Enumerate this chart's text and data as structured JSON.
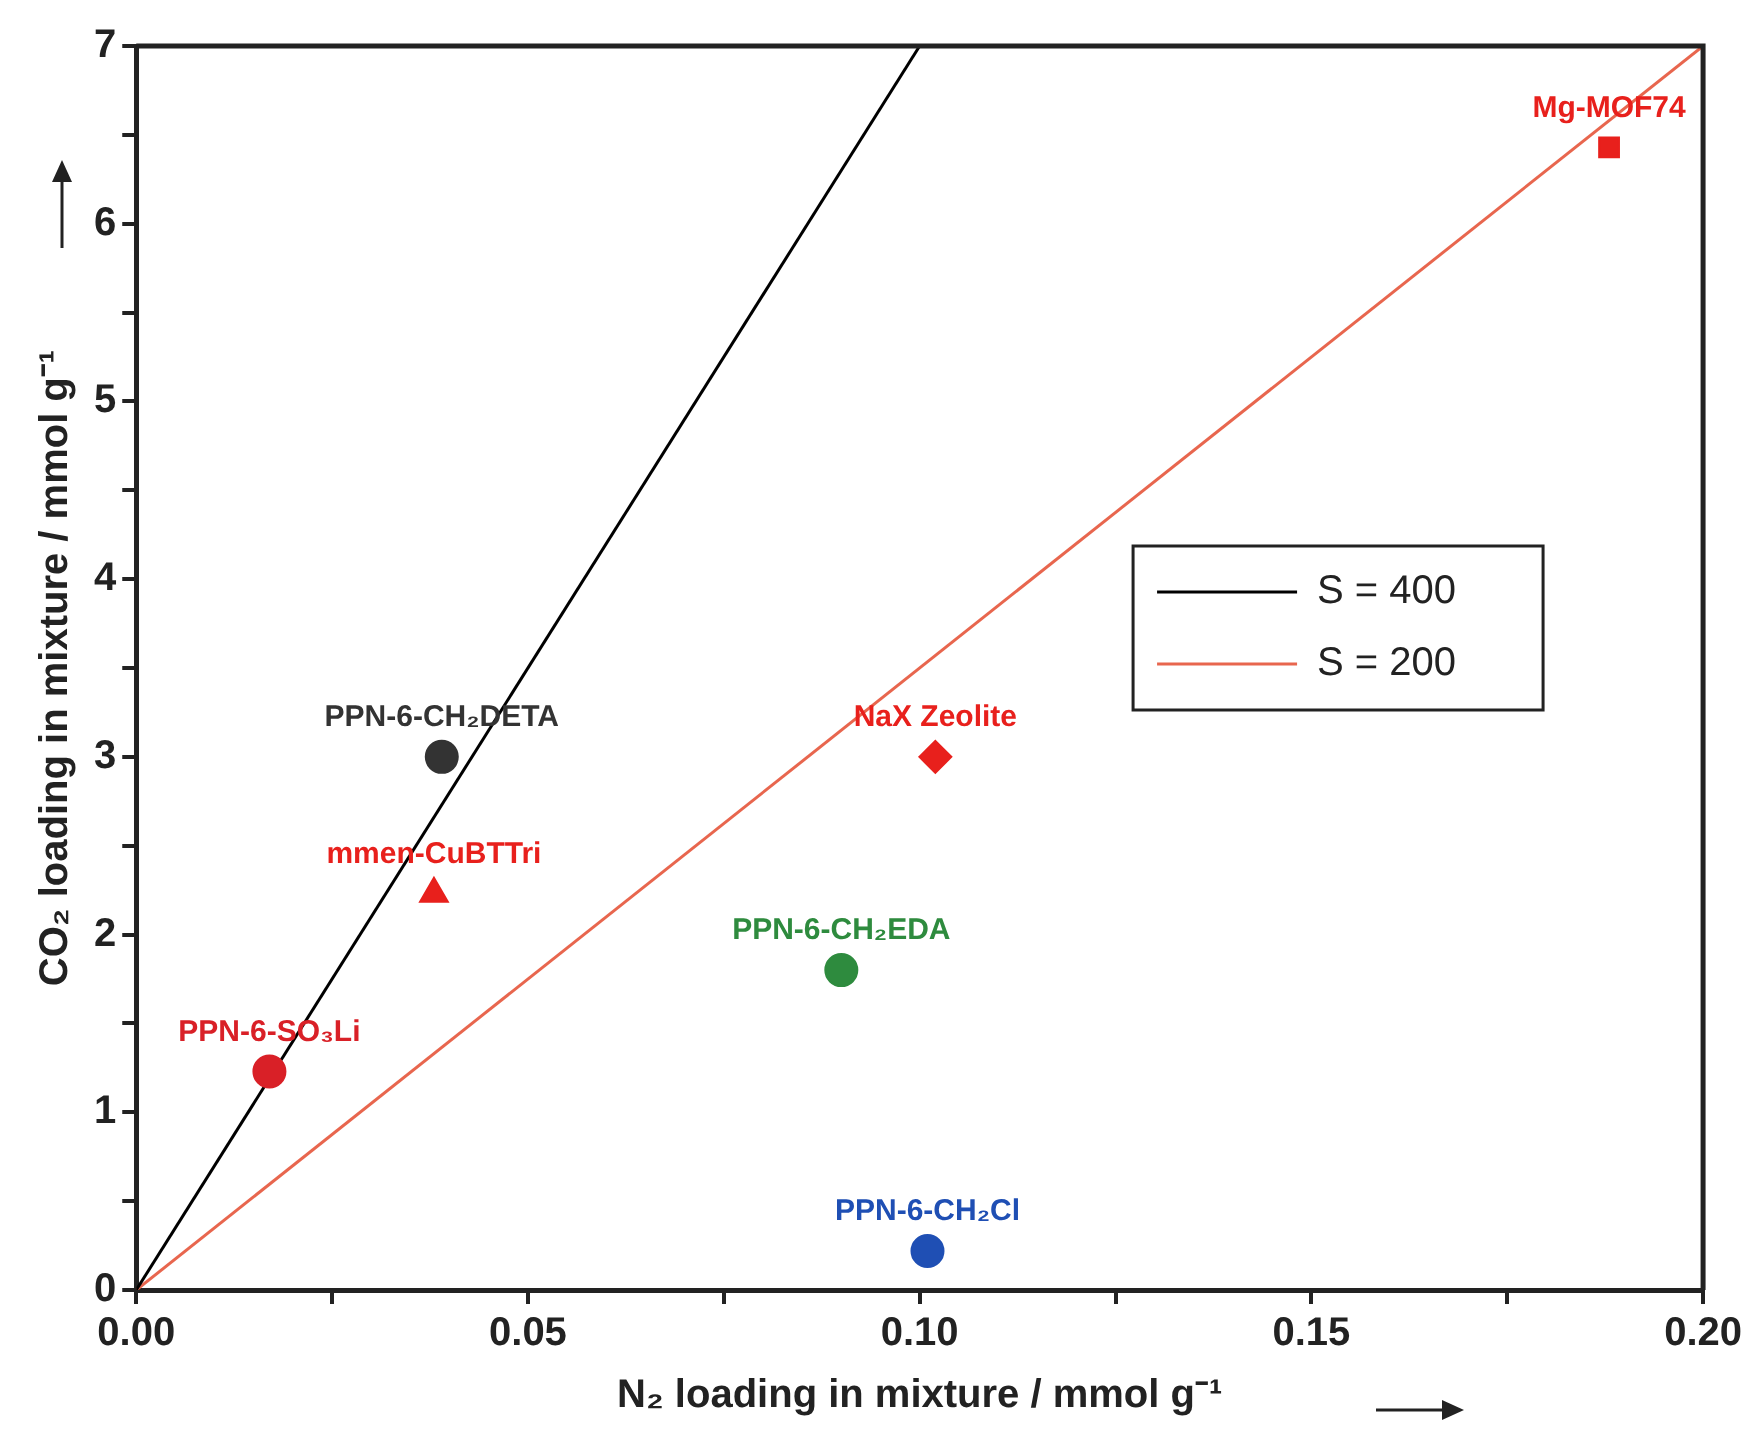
{
  "chart_data": {
    "type": "scatter",
    "xlabel": "N₂ loading in mixture / mmol g⁻¹",
    "ylabel": "CO₂ loading in mixture / mmol g⁻¹",
    "xlim": [
      0,
      0.2
    ],
    "xticks": [
      {
        "value": 0,
        "label": "0.00"
      },
      {
        "value": 0.025,
        "label": null
      },
      {
        "value": 0.05,
        "label": "0.05"
      },
      {
        "value": 0.075,
        "label": null
      },
      {
        "value": 0.1,
        "label": "0.10"
      },
      {
        "value": 0.125,
        "label": null
      },
      {
        "value": 0.15,
        "label": "0.15"
      },
      {
        "value": 0.175,
        "label": null
      },
      {
        "value": 0.2,
        "label": "0.20"
      }
    ],
    "ylim": [
      0,
      7
    ],
    "yticks": [
      0,
      {
        "value": 0.5,
        "label": null
      },
      1,
      {
        "value": 1.5,
        "label": null
      },
      2,
      {
        "value": 2.5,
        "label": null
      },
      3,
      {
        "value": 3.5,
        "label": null
      },
      4,
      {
        "value": 4.5,
        "label": null
      },
      5,
      {
        "value": 5.5,
        "label": null
      },
      6,
      {
        "value": 6.5,
        "label": null
      },
      7
    ],
    "grid": false,
    "legend": "right",
    "series": [
      {
        "name": "PPN-6-CH₂DETA",
        "color": "#333333",
        "marker": "circle",
        "x": [
          0.039
        ],
        "values": [
          3.0
        ]
      },
      {
        "name": "mmen-CuBTTri",
        "color": "#e8201c",
        "marker": "triangle",
        "x": [
          0.038
        ],
        "values": [
          2.23
        ]
      },
      {
        "name": "PPN-6-SO₃Li",
        "color": "#d92027",
        "marker": "circle",
        "x": [
          0.017
        ],
        "values": [
          1.23
        ]
      },
      {
        "name": "NaX Zeolite",
        "color": "#e8201c",
        "marker": "diamond",
        "x": [
          0.102
        ],
        "values": [
          3.0
        ]
      },
      {
        "name": "PPN-6-CH₂EDA",
        "color": "#2e8b3e",
        "marker": "circle",
        "x": [
          0.09
        ],
        "values": [
          1.8
        ]
      },
      {
        "name": "PPN-6-CH₂Cl",
        "color": "#1f4fb4",
        "marker": "circle",
        "x": [
          0.101
        ],
        "values": [
          0.22
        ]
      },
      {
        "name": "Mg-MOF74",
        "color": "#e8201c",
        "marker": "square",
        "x": [
          0.188
        ],
        "values": [
          6.43
        ]
      },
      {
        "name": "S = 400",
        "type": "line",
        "color": "#000000",
        "marker": "none",
        "line_style": "solid",
        "x": [
          0,
          0.1
        ],
        "values": [
          0,
          7
        ]
      },
      {
        "name": "S = 200",
        "type": "line",
        "color": "#e8664e",
        "marker": "none",
        "line_style": "solid",
        "x": [
          0,
          0.2
        ],
        "values": [
          0,
          7
        ]
      }
    ]
  }
}
